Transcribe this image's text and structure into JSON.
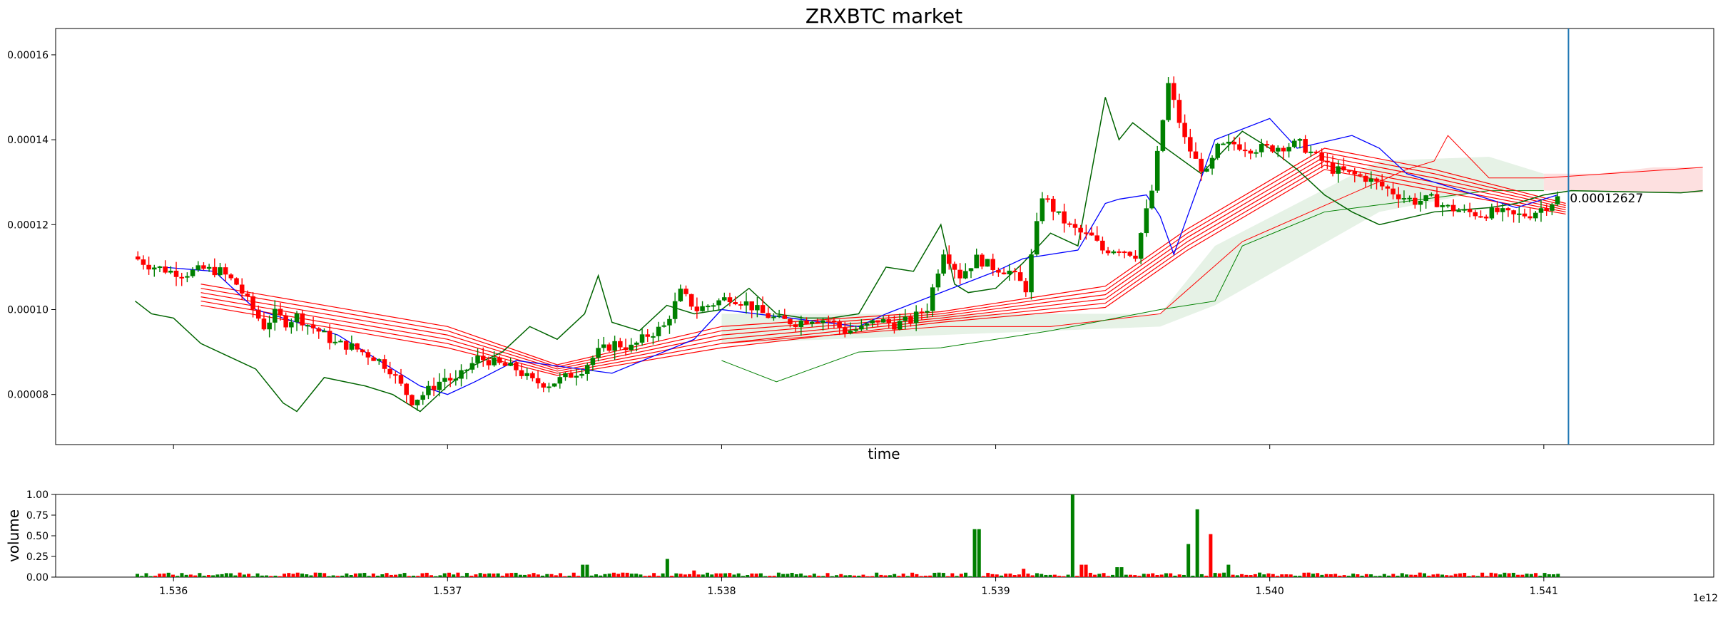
{
  "chart_data": [
    {
      "type": "candlestick",
      "title": "ZRXBTC market",
      "xlabel": "time",
      "ylabel": "",
      "xlim": [
        1.53557,
        1.54162
      ],
      "ylim": [
        6.82e-05,
        0.0001662
      ],
      "x_ticks": [
        1.536,
        1.537,
        1.538,
        1.539,
        1.54,
        1.541
      ],
      "x_tick_labels": [
        "1.536",
        "1.537",
        "1.538",
        "1.539",
        "1.540",
        "1.541"
      ],
      "x_offset_label": "1e12",
      "y_ticks": [
        8e-05,
        0.0001,
        0.00012,
        0.00014,
        0.00016
      ],
      "y_tick_labels": [
        "0.00008",
        "0.00010",
        "0.00012",
        "0.00014",
        "0.00016"
      ],
      "vline_x": 1.54109,
      "last_price_label": "0.00012627",
      "colors": {
        "up": "#008000",
        "down": "#ff0000",
        "tenkan": "#0000ff",
        "chikou": "#006400",
        "ribbon": "#ff0000",
        "cloud_green": "#e6f2e6",
        "cloud_red": "#fde0e0",
        "vline": "#1f77b4"
      },
      "close_path": {
        "x": [
          1.53586,
          1.53592,
          1.536,
          1.53605,
          1.53612,
          1.53618,
          1.53624,
          1.5363,
          1.53634,
          1.53638,
          1.53642,
          1.53646,
          1.5365,
          1.53655,
          1.5366,
          1.53665,
          1.5367,
          1.53675,
          1.5368,
          1.53684,
          1.53688,
          1.53692,
          1.53696,
          1.537,
          1.53704,
          1.53708,
          1.53712,
          1.53716,
          1.5372,
          1.53726,
          1.53732,
          1.53738,
          1.53744,
          1.5375,
          1.53756,
          1.53762,
          1.53768,
          1.53774,
          1.5378,
          1.53786,
          1.53792,
          1.53798,
          1.53804,
          1.5381,
          1.53816,
          1.53822,
          1.53828,
          1.53834,
          1.5384,
          1.53846,
          1.53852,
          1.53858,
          1.53864,
          1.5387,
          1.53876,
          1.53882,
          1.53888,
          1.53894,
          1.539,
          1.53906,
          1.53912,
          1.53918,
          1.53924,
          1.53928,
          1.53932,
          1.53936,
          1.5394,
          1.53946,
          1.53952,
          1.53958,
          1.53964,
          1.5397,
          1.53974,
          1.53978,
          1.53982,
          1.53988,
          1.53994,
          1.54,
          1.54006,
          1.54012,
          1.54018,
          1.54024,
          1.5403,
          1.54036,
          1.54042,
          1.54048,
          1.54054,
          1.5406,
          1.54066,
          1.54072,
          1.54078,
          1.54084,
          1.5409,
          1.54096,
          1.54102,
          1.54106
        ],
        "y": [
          0.0001125,
          0.0001105,
          0.000109,
          0.0001085,
          0.0001095,
          0.000109,
          0.000106,
          0.0001,
          9.6e-05,
          9.9e-05,
          9.7e-05,
          9.85e-05,
          9.65e-05,
          9.45e-05,
          9.2e-05,
          9.15e-05,
          9e-05,
          8.85e-05,
          8.6e-05,
          8.2e-05,
          7.85e-05,
          8e-05,
          8.2e-05,
          8.4e-05,
          8.3e-05,
          8.6e-05,
          8.85e-05,
          8.8e-05,
          8.7e-05,
          8.6e-05,
          8.3e-05,
          8.25e-05,
          8.4e-05,
          8.6e-05,
          9e-05,
          9.2e-05,
          9.1e-05,
          9.4e-05,
          9.6e-05,
          0.000104,
          0.0001,
          0.0001015,
          0.000103,
          0.0001015,
          9.9e-05,
          9.75e-05,
          9.7e-05,
          9.8e-05,
          9.75e-05,
          9.5e-05,
          9.55e-05,
          9.75e-05,
          9.65e-05,
          9.75e-05,
          0.0001005,
          0.000114,
          0.000108,
          0.000112,
          0.00011,
          0.000109,
          0.000105,
          0.000127,
          0.000122,
          0.0001195,
          0.000118,
          0.000117,
          0.000114,
          0.0001145,
          0.000113,
          0.000128,
          0.000153,
          0.00014,
          0.000135,
          0.000132,
          0.000138,
          0.000139,
          0.000138,
          0.000138,
          0.0001385,
          0.000139,
          0.000136,
          0.000133,
          0.000132,
          0.000131,
          0.000129,
          0.000127,
          0.0001255,
          0.000126,
          0.000124,
          0.000123,
          0.0001225,
          0.000123,
          0.000122,
          0.0001225,
          0.0001245,
          0.0001263
        ]
      },
      "tenkan_line": {
        "x": [
          1.53596,
          1.53615,
          1.5363,
          1.5366,
          1.5369,
          1.537,
          1.5371,
          1.53725,
          1.5376,
          1.5379,
          1.538,
          1.5385,
          1.5386,
          1.539,
          1.5391,
          1.5393,
          1.5394,
          1.53945,
          1.53955,
          1.5396,
          1.53965,
          1.5398,
          1.54,
          1.5401,
          1.5403,
          1.5404,
          1.5405,
          1.5407,
          1.5409,
          1.54105
        ],
        "y": [
          0.00011,
          0.000109,
          0.0001,
          9.4e-05,
          8.2e-05,
          8e-05,
          8.3e-05,
          8.8e-05,
          8.5e-05,
          9.3e-05,
          0.0001,
          9.6e-05,
          9.9e-05,
          0.000109,
          0.000112,
          0.000114,
          0.000125,
          0.000126,
          0.000127,
          0.000122,
          0.000113,
          0.00014,
          0.000145,
          0.000138,
          0.000141,
          0.000138,
          0.000132,
          0.000128,
          0.000124,
          0.000127
        ]
      },
      "chikou_line": {
        "x": [
          1.53586,
          1.53592,
          1.536,
          1.5361,
          1.5362,
          1.5363,
          1.5364,
          1.53645,
          1.53655,
          1.5367,
          1.5368,
          1.5369,
          1.537,
          1.5371,
          1.5372,
          1.5373,
          1.5374,
          1.5375,
          1.53755,
          1.5376,
          1.5377,
          1.5378,
          1.5379,
          1.538,
          1.5381,
          1.5382,
          1.5383,
          1.5384,
          1.5385,
          1.5386,
          1.5387,
          1.5388,
          1.53885,
          1.5389,
          1.539,
          1.5391,
          1.5392,
          1.5393,
          1.5394,
          1.53945,
          1.5395,
          1.5396,
          1.53975,
          1.5399,
          1.54,
          1.5401,
          1.5402,
          1.5403,
          1.5404,
          1.5406,
          1.5408,
          1.5409,
          1.541,
          1.5411,
          1.5415,
          1.54158
        ],
        "y": [
          0.000102,
          9.9e-05,
          9.8e-05,
          9.2e-05,
          8.9e-05,
          8.6e-05,
          7.8e-05,
          7.6e-05,
          8.4e-05,
          8.2e-05,
          8e-05,
          7.6e-05,
          8.2e-05,
          8.7e-05,
          9e-05,
          9.6e-05,
          9.3e-05,
          9.9e-05,
          0.000108,
          9.7e-05,
          9.5e-05,
          0.000101,
          9.9e-05,
          0.0001,
          0.000105,
          9.9e-05,
          9.8e-05,
          9.8e-05,
          9.9e-05,
          0.00011,
          0.000109,
          0.00012,
          0.000106,
          0.000104,
          0.000105,
          0.000111,
          0.000118,
          0.000115,
          0.00015,
          0.00014,
          0.000144,
          0.000139,
          0.000132,
          0.000142,
          0.000138,
          0.000133,
          0.000127,
          0.000123,
          0.00012,
          0.000123,
          0.000124,
          0.000125,
          0.000127,
          0.000128,
          0.0001275,
          0.000128
        ]
      },
      "ribbon_lines": [
        {
          "x": [
            1.5361,
            1.537,
            1.5374,
            1.538,
            1.5388,
            1.5394,
            1.5397,
            1.5402,
            1.5406,
            1.54108
          ],
          "y": [
            0.000106,
            9.6e-05,
            8.7e-05,
            9.6e-05,
            9.95e-05,
            0.0001055,
            0.000119,
            0.000138,
            0.000133,
            0.000125
          ]
        },
        {
          "x": [
            1.5361,
            1.537,
            1.5374,
            1.538,
            1.5388,
            1.5394,
            1.5397,
            1.5402,
            1.5406,
            1.54108
          ],
          "y": [
            0.000105,
            9.5e-05,
            8.65e-05,
            9.5e-05,
            9.9e-05,
            0.0001045,
            0.000118,
            0.000137,
            0.000132,
            0.0001245
          ]
        },
        {
          "x": [
            1.5361,
            1.537,
            1.5374,
            1.538,
            1.5388,
            1.5394,
            1.5397,
            1.5402,
            1.5406,
            1.54108
          ],
          "y": [
            0.000104,
            9.4e-05,
            8.6e-05,
            9.4e-05,
            9.85e-05,
            0.0001035,
            0.000117,
            0.000136,
            0.000131,
            0.000124
          ]
        },
        {
          "x": [
            1.5361,
            1.537,
            1.5374,
            1.538,
            1.5388,
            1.5394,
            1.5397,
            1.5402,
            1.5406,
            1.54108
          ],
          "y": [
            0.000103,
            9.3e-05,
            8.55e-05,
            9.3e-05,
            9.8e-05,
            0.0001025,
            0.000116,
            0.000135,
            0.00013,
            0.0001235
          ]
        },
        {
          "x": [
            1.5361,
            1.537,
            1.5374,
            1.538,
            1.5388,
            1.5394,
            1.5397,
            1.5402,
            1.5406,
            1.54108
          ],
          "y": [
            0.000102,
            9.2e-05,
            8.5e-05,
            9.2e-05,
            9.75e-05,
            0.0001015,
            0.000115,
            0.000134,
            0.000129,
            0.000123
          ]
        },
        {
          "x": [
            1.5361,
            1.537,
            1.5374,
            1.538,
            1.5388,
            1.5394,
            1.5397,
            1.5402,
            1.5406,
            1.54108
          ],
          "y": [
            0.000101,
            9.1e-05,
            8.45e-05,
            9.1e-05,
            9.7e-05,
            0.0001005,
            0.000114,
            0.000133,
            0.000128,
            0.0001225
          ]
        }
      ],
      "cloud_spans": [
        {
          "color": "cloud_green",
          "x": [
            1.538,
            1.5396,
            1.5398,
            1.5404,
            1.5408,
            1.541
          ],
          "upper": [
            9.9e-05,
            9.9e-05,
            0.000115,
            0.000135,
            0.000136,
            0.000132
          ],
          "lower": [
            9.2e-05,
            9.6e-05,
            0.000101,
            0.000123,
            0.000128,
            0.000128
          ]
        },
        {
          "color": "cloud_red",
          "x": [
            1.541,
            1.5412,
            1.5414,
            1.54158
          ],
          "upper": [
            0.000132,
            0.000132,
            0.0001335,
            0.0001335
          ],
          "lower": [
            0.000128,
            0.000128,
            0.0001275,
            0.0001275
          ]
        }
      ],
      "cloud_edges": [
        {
          "color": "#ff0000",
          "x": [
            1.538,
            1.5388,
            1.5392,
            1.5396,
            1.5399,
            1.5405,
            1.5406,
            1.54065,
            1.5408,
            1.541,
            1.54158
          ],
          "y": [
            9.2e-05,
            9.6e-05,
            9.6e-05,
            9.9e-05,
            0.000116,
            0.000133,
            0.000135,
            0.000141,
            0.000131,
            0.000131,
            0.0001335
          ]
        },
        {
          "color": "#008000",
          "x": [
            1.538,
            1.5382,
            1.5385,
            1.5388,
            1.5392,
            1.5396,
            1.5398,
            1.5399,
            1.5402,
            1.5408,
            1.541
          ],
          "y": [
            8.8e-05,
            8.3e-05,
            9e-05,
            9.1e-05,
            9.5e-05,
            0.0001,
            0.000102,
            0.000115,
            0.000123,
            0.000128,
            0.000128
          ]
        }
      ]
    },
    {
      "type": "bar",
      "title": "",
      "xlabel": "",
      "ylabel": "volume",
      "xlim": [
        1.53557,
        1.54162
      ],
      "ylim": [
        0.0,
        1.0
      ],
      "x_ticks": [
        1.536,
        1.537,
        1.538,
        1.539,
        1.54,
        1.541
      ],
      "x_tick_labels": [
        "1.536",
        "1.537",
        "1.538",
        "1.539",
        "1.540",
        "1.541"
      ],
      "y_ticks": [
        0.0,
        0.25,
        0.5,
        0.75,
        1.0
      ],
      "y_tick_labels": [
        "0.00",
        "0.25",
        "0.50",
        "0.75",
        "1.00"
      ],
      "offset_label": "1e12",
      "peaks": [
        {
          "x": 1.5375,
          "value": 0.15,
          "color": "up"
        },
        {
          "x": 1.5378,
          "value": 0.22,
          "color": "up"
        },
        {
          "x": 1.5379,
          "value": 0.08,
          "color": "down"
        },
        {
          "x": 1.53893,
          "value": 0.58,
          "color": "up"
        },
        {
          "x": 1.5391,
          "value": 0.1,
          "color": "down"
        },
        {
          "x": 1.53928,
          "value": 1.0,
          "color": "up"
        },
        {
          "x": 1.53932,
          "value": 0.15,
          "color": "down"
        },
        {
          "x": 1.53945,
          "value": 0.12,
          "color": "up"
        },
        {
          "x": 1.5397,
          "value": 0.4,
          "color": "up"
        },
        {
          "x": 1.53974,
          "value": 0.82,
          "color": "up"
        },
        {
          "x": 1.53978,
          "value": 0.52,
          "color": "down"
        },
        {
          "x": 1.53985,
          "value": 0.15,
          "color": "up"
        }
      ]
    }
  ]
}
